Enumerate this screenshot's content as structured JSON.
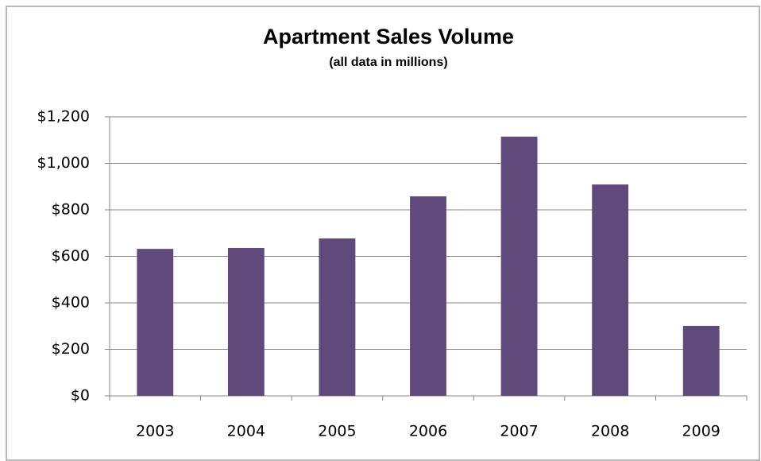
{
  "chart_data": {
    "type": "bar",
    "title": "Apartment Sales Volume",
    "subtitle": "(all data in millions)",
    "categories": [
      "2003",
      "2004",
      "2005",
      "2006",
      "2007",
      "2008",
      "2009"
    ],
    "values": [
      632,
      636,
      677,
      858,
      1115,
      909,
      301
    ],
    "color": "#604a7b",
    "ylim": [
      0,
      1200
    ],
    "yticks": [
      {
        "value": 0,
        "label": "$0"
      },
      {
        "value": 200,
        "label": "$200"
      },
      {
        "value": 400,
        "label": "$400"
      },
      {
        "value": 600,
        "label": "$600"
      },
      {
        "value": 800,
        "label": "$800"
      },
      {
        "value": 1000,
        "label": "$1,000"
      },
      {
        "value": 1200,
        "label": "$1,200"
      }
    ],
    "grid": true
  }
}
